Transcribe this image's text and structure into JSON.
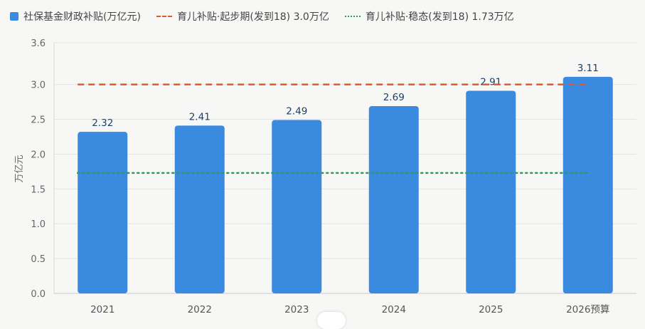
{
  "chart_data": {
    "type": "bar",
    "categories": [
      "2021",
      "2022",
      "2023",
      "2024",
      "2025",
      "2026预算"
    ],
    "series": [
      {
        "name": "社保基金财政补贴(万亿元)",
        "values": [
          2.32,
          2.41,
          2.49,
          2.69,
          2.91,
          3.11
        ],
        "color": "#3a8ae0"
      }
    ],
    "reference_lines": [
      {
        "name": "育儿补贴·起步期(发到18) 3.0万亿",
        "value": 3.0,
        "color": "#e0592a",
        "style": "dashed"
      },
      {
        "name": "育儿补贴·稳态(发到18) 1.73万亿",
        "value": 1.73,
        "color": "#2a9d5c",
        "style": "dotted"
      }
    ],
    "ylabel": "万亿元",
    "ylim": [
      0,
      3.6
    ],
    "yticks": [
      "0.0",
      "0.5",
      "1.0",
      "1.5",
      "2.0",
      "2.5",
      "3.0",
      "3.6"
    ],
    "grid": true,
    "legend_position": "top-left"
  }
}
